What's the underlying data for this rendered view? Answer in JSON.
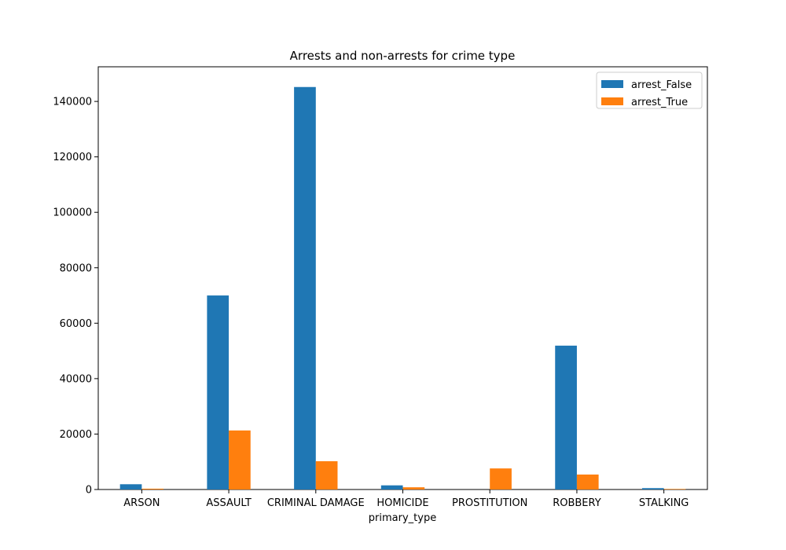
{
  "chart_data": {
    "type": "bar",
    "title": "Arrests and non-arrests for crime type",
    "xlabel": "primary_type",
    "ylabel": "",
    "categories": [
      "ARSON",
      "ASSAULT",
      "CRIMINAL DAMAGE",
      "HOMICIDE",
      "PROSTITUTION",
      "ROBBERY",
      "STALKING"
    ],
    "series": [
      {
        "name": "arrest_False",
        "color": "#1f77b4",
        "values": [
          1900,
          70000,
          145200,
          1500,
          0,
          51900,
          500
        ]
      },
      {
        "name": "arrest_True",
        "color": "#ff7f0e",
        "values": [
          300,
          21300,
          10200,
          800,
          7600,
          5400,
          200
        ]
      }
    ],
    "ylim": [
      0,
      152500
    ],
    "yticks": [
      0,
      20000,
      40000,
      60000,
      80000,
      100000,
      120000,
      140000
    ],
    "ytick_labels": [
      "0",
      "20000",
      "40000",
      "60000",
      "80000",
      "100000",
      "120000",
      "140000"
    ],
    "grid": false,
    "legend_position": "top-right"
  }
}
